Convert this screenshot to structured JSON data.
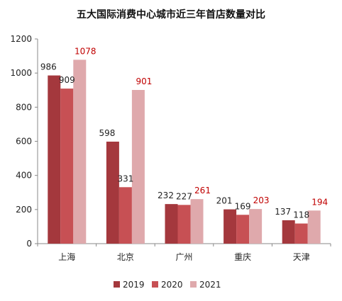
{
  "chart_data": {
    "type": "bar",
    "title": "五大国际消费中心城市近三年首店数量对比",
    "categories": [
      "上海",
      "北京",
      "广州",
      "重庆",
      "天津"
    ],
    "series": [
      {
        "name": "2019",
        "values": [
          986,
          598,
          232,
          201,
          137
        ],
        "color": "#A4383D",
        "label_color": "#222222"
      },
      {
        "name": "2020",
        "values": [
          909,
          331,
          227,
          169,
          118
        ],
        "color": "#C75054",
        "label_color": "#222222"
      },
      {
        "name": "2021",
        "values": [
          1078,
          901,
          261,
          203,
          194
        ],
        "color": "#DFA9AC",
        "label_color": "#C00000"
      }
    ],
    "ylim": [
      0,
      1200
    ],
    "yticks": [
      0,
      200,
      400,
      600,
      800,
      1000,
      1200
    ],
    "xlabel": "",
    "ylabel": "",
    "grid": false,
    "legend_position": "bottom"
  }
}
